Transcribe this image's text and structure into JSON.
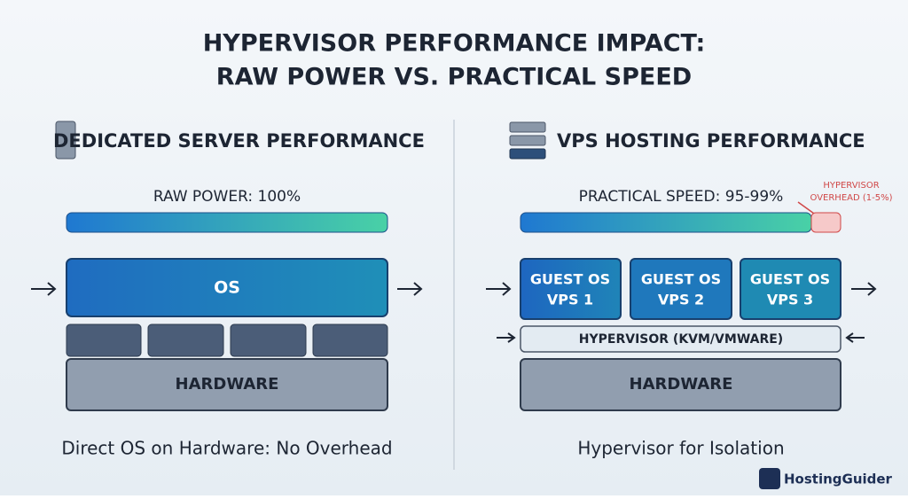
{
  "title": {
    "line1": "HYPERVISOR PERFORMANCE IMPACT:",
    "line2": "RAW POWER VS. PRACTICAL SPEED"
  },
  "left": {
    "heading": "DEDICATED SERVER PERFORMANCE",
    "bar_label": "RAW POWER: 100%",
    "os": "OS",
    "hardware": "HARDWARE",
    "caption": "Direct OS on Hardware: No Overhead"
  },
  "right": {
    "heading": "VPS HOSTING PERFORMANCE",
    "bar_label": "PRACTICAL SPEED: 95-99%",
    "overhead": {
      "line1": "HYPERVISOR",
      "line2": "OVERHEAD (1-5%)"
    },
    "guests": [
      {
        "line1": "GUEST OS",
        "line2": "VPS 1"
      },
      {
        "line1": "GUEST OS",
        "line2": "VPS 2"
      },
      {
        "line1": "GUEST OS",
        "line2": "VPS 3"
      }
    ],
    "hypervisor": "HYPERVISOR (KVM/VMWARE)",
    "hardware": "HARDWARE",
    "caption": "Hypervisor for Isolation"
  },
  "logo": "HostingGuider"
}
